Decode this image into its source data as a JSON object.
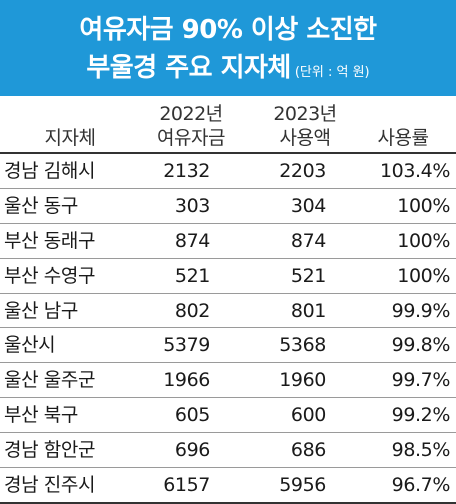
{
  "title": {
    "line1": "여유자금 90% 이상 소진한",
    "line2": "부울경 주요 지자체",
    "unit": "(단위 : 억 원)"
  },
  "table": {
    "headers": {
      "region": "지자체",
      "reserve_year": "2022년",
      "reserve_label": "여유자금",
      "used_year": "2023년",
      "used_label": "사용액",
      "rate": "사용률"
    },
    "rows": [
      {
        "region": "경남 김해시",
        "reserve_2022": "2132",
        "used_2023": "2203",
        "rate": "103.4%"
      },
      {
        "region": "울산 동구",
        "reserve_2022": "303",
        "used_2023": "304",
        "rate": "100%"
      },
      {
        "region": "부산 동래구",
        "reserve_2022": "874",
        "used_2023": "874",
        "rate": "100%"
      },
      {
        "region": "부산 수영구",
        "reserve_2022": "521",
        "used_2023": "521",
        "rate": "100%"
      },
      {
        "region": "울산 남구",
        "reserve_2022": "802",
        "used_2023": "801",
        "rate": "99.9%"
      },
      {
        "region": "울산시",
        "reserve_2022": "5379",
        "used_2023": "5368",
        "rate": "99.8%"
      },
      {
        "region": "울산 울주군",
        "reserve_2022": "1966",
        "used_2023": "1960",
        "rate": "99.7%"
      },
      {
        "region": "부산 북구",
        "reserve_2022": "605",
        "used_2023": "600",
        "rate": "99.2%"
      },
      {
        "region": "경남 함안군",
        "reserve_2022": "696",
        "used_2023": "686",
        "rate": "98.5%"
      },
      {
        "region": "경남 진주시",
        "reserve_2022": "6157",
        "used_2023": "5956",
        "rate": "96.7%"
      }
    ]
  },
  "colors": {
    "title_background": "#1f98d8",
    "title_text": "#ffffff"
  }
}
